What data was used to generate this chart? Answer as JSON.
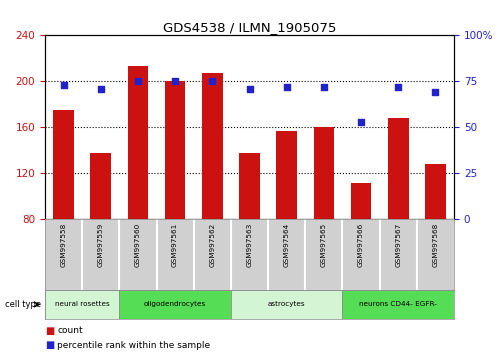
{
  "title": "GDS4538 / ILMN_1905075",
  "samples": [
    "GSM997558",
    "GSM997559",
    "GSM997560",
    "GSM997561",
    "GSM997562",
    "GSM997563",
    "GSM997564",
    "GSM997565",
    "GSM997566",
    "GSM997567",
    "GSM997568"
  ],
  "counts": [
    175,
    138,
    213,
    200,
    207,
    138,
    157,
    160,
    112,
    168,
    128
  ],
  "percentiles": [
    73,
    71,
    75,
    75,
    75,
    71,
    72,
    72,
    53,
    72,
    69
  ],
  "ylim_left": [
    80,
    240
  ],
  "ylim_right": [
    0,
    100
  ],
  "yticks_left": [
    80,
    120,
    160,
    200,
    240
  ],
  "ytick_labels_left": [
    "80",
    "120",
    "160",
    "200",
    "240"
  ],
  "yticks_right": [
    0,
    25,
    50,
    75,
    100
  ],
  "ytick_labels_right": [
    "0",
    "25",
    "50",
    "75",
    "100%"
  ],
  "cell_types": [
    {
      "label": "neural rosettes",
      "start": 0,
      "end": 1,
      "color": "#d8f5d8"
    },
    {
      "label": "oligodendrocytes",
      "start": 2,
      "end": 4,
      "color": "#66dd66"
    },
    {
      "label": "astrocytes",
      "start": 5,
      "end": 7,
      "color": "#d8f5d8"
    },
    {
      "label": "neurons CD44- EGFR-",
      "start": 8,
      "end": 10,
      "color": "#66dd66"
    }
  ],
  "bar_color": "#cc1111",
  "dot_color": "#2222cc",
  "tick_color_left": "#cc1111",
  "tick_color_right": "#2222cc",
  "sample_box_color": "#d0d0d0",
  "sample_box_edge": "#aaaaaa",
  "bg_color": "#ffffff",
  "grid_color": "#000000",
  "cell_type_label": "cell type",
  "legend_items": [
    {
      "color": "#cc1111",
      "label": "count"
    },
    {
      "color": "#2222cc",
      "label": "percentile rank within the sample"
    }
  ]
}
